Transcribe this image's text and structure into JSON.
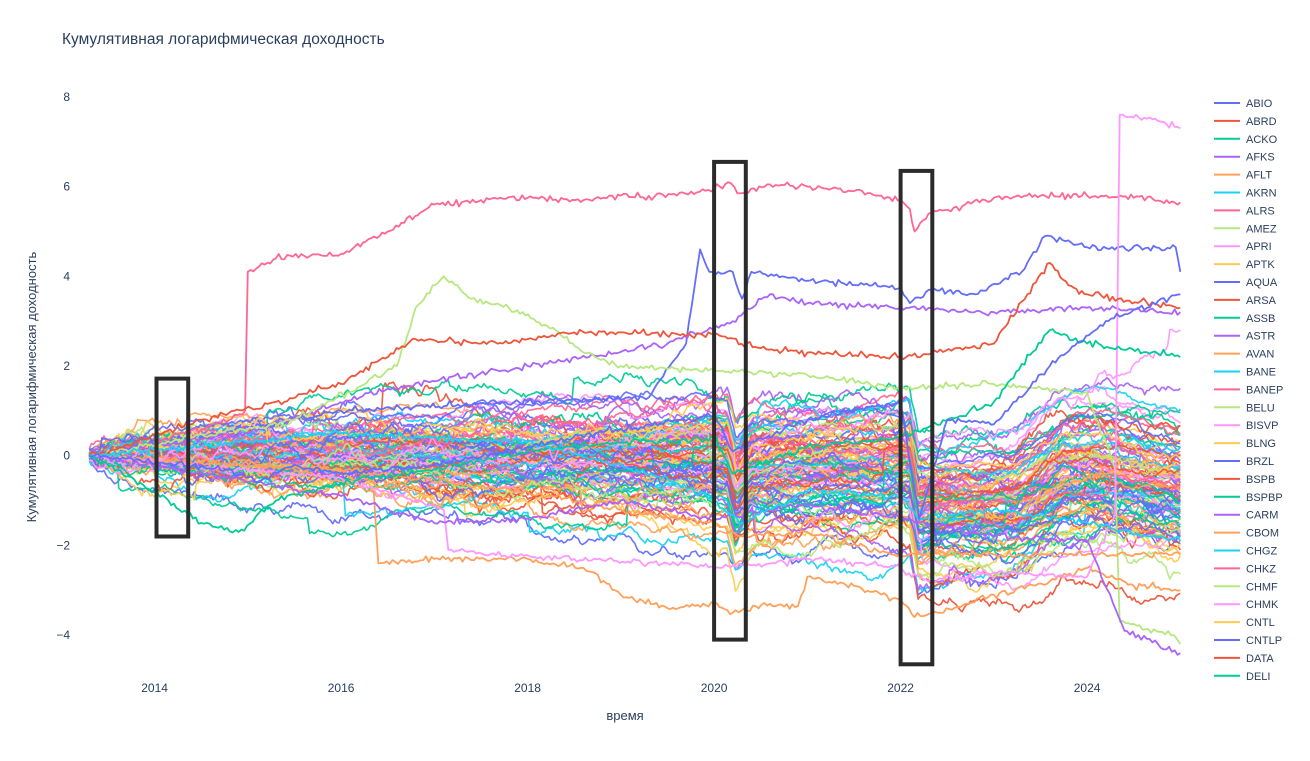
{
  "chart_data": {
    "type": "line",
    "title": "Кумулятивная логарифмическая доходность",
    "xlabel": "время",
    "ylabel": "Кумулятивная логарифмическая доходность",
    "xlim": [
      2013.2,
      2025.05
    ],
    "ylim": [
      -5.0,
      8.6
    ],
    "x_ticks": [
      2014,
      2016,
      2018,
      2020,
      2022,
      2024
    ],
    "x_tick_labels": [
      "2014",
      "2016",
      "2018",
      "2020",
      "2022",
      "2024"
    ],
    "y_ticks": [
      -4,
      -2,
      0,
      2,
      4,
      6,
      8
    ],
    "y_tick_labels": [
      "−4",
      "−2",
      "0",
      "2",
      "4",
      "6",
      "8"
    ],
    "grid": false,
    "legend_position": "right",
    "legend": [
      {
        "name": "ABIO",
        "color": "#636efa"
      },
      {
        "name": "ABRD",
        "color": "#ef553b"
      },
      {
        "name": "ACKO",
        "color": "#00cc96"
      },
      {
        "name": "AFKS",
        "color": "#ab63fa"
      },
      {
        "name": "AFLT",
        "color": "#ffa15a"
      },
      {
        "name": "AKRN",
        "color": "#19d3f3"
      },
      {
        "name": "ALRS",
        "color": "#ff6692"
      },
      {
        "name": "AMEZ",
        "color": "#b6e880"
      },
      {
        "name": "APRI",
        "color": "#ff97ff"
      },
      {
        "name": "APTK",
        "color": "#fecb52"
      },
      {
        "name": "AQUA",
        "color": "#636efa"
      },
      {
        "name": "ARSA",
        "color": "#ef553b"
      },
      {
        "name": "ASSB",
        "color": "#00cc96"
      },
      {
        "name": "ASTR",
        "color": "#ab63fa"
      },
      {
        "name": "AVAN",
        "color": "#ffa15a"
      },
      {
        "name": "BANE",
        "color": "#19d3f3"
      },
      {
        "name": "BANEP",
        "color": "#ff6692"
      },
      {
        "name": "BELU",
        "color": "#b6e880"
      },
      {
        "name": "BISVP",
        "color": "#ff97ff"
      },
      {
        "name": "BLNG",
        "color": "#fecb52"
      },
      {
        "name": "BRZL",
        "color": "#636efa"
      },
      {
        "name": "BSPB",
        "color": "#ef553b"
      },
      {
        "name": "BSPBP",
        "color": "#00cc96"
      },
      {
        "name": "CARM",
        "color": "#ab63fa"
      },
      {
        "name": "CBOM",
        "color": "#ffa15a"
      },
      {
        "name": "CHGZ",
        "color": "#19d3f3"
      },
      {
        "name": "CHKZ",
        "color": "#ff6692"
      },
      {
        "name": "CHMF",
        "color": "#b6e880"
      },
      {
        "name": "CHMK",
        "color": "#ff97ff"
      },
      {
        "name": "CNTL",
        "color": "#fecb52"
      },
      {
        "name": "CNTLP",
        "color": "#636efa"
      },
      {
        "name": "DATA",
        "color": "#ef553b"
      },
      {
        "name": "DELI",
        "color": "#00cc96"
      }
    ],
    "highlighted_series": [
      {
        "color": "#ff6692",
        "points": [
          [
            2013.3,
            0
          ],
          [
            2014.0,
            0.3
          ],
          [
            2014.8,
            0.8
          ],
          [
            2014.97,
            1.0
          ],
          [
            2015.0,
            4.1
          ],
          [
            2015.3,
            4.4
          ],
          [
            2016.0,
            4.5
          ],
          [
            2016.5,
            5.0
          ],
          [
            2017.0,
            5.6
          ],
          [
            2017.5,
            5.7
          ],
          [
            2018.0,
            5.75
          ],
          [
            2018.6,
            5.7
          ],
          [
            2019.0,
            5.8
          ],
          [
            2019.6,
            5.8
          ],
          [
            2020.0,
            5.95
          ],
          [
            2020.15,
            6.1
          ],
          [
            2020.25,
            5.85
          ],
          [
            2020.6,
            6.05
          ],
          [
            2021.0,
            6.0
          ],
          [
            2021.5,
            5.9
          ],
          [
            2022.0,
            5.7
          ],
          [
            2022.1,
            5.5
          ],
          [
            2022.15,
            5.0
          ],
          [
            2022.3,
            5.4
          ],
          [
            2022.6,
            5.55
          ],
          [
            2023.0,
            5.75
          ],
          [
            2023.5,
            5.8
          ],
          [
            2024.0,
            5.8
          ],
          [
            2024.5,
            5.75
          ],
          [
            2025.0,
            5.65
          ]
        ]
      },
      {
        "color": "#636efa",
        "points": [
          [
            2013.3,
            0
          ],
          [
            2016.0,
            1.0
          ],
          [
            2018.0,
            1.2
          ],
          [
            2019.3,
            1.3
          ],
          [
            2019.7,
            2.5
          ],
          [
            2019.85,
            4.6
          ],
          [
            2019.95,
            4.1
          ],
          [
            2020.2,
            4.1
          ],
          [
            2020.3,
            3.5
          ],
          [
            2020.4,
            4.1
          ],
          [
            2021.0,
            3.9
          ],
          [
            2022.0,
            3.75
          ],
          [
            2022.1,
            3.4
          ],
          [
            2022.3,
            3.7
          ],
          [
            2022.8,
            3.6
          ],
          [
            2023.3,
            4.1
          ],
          [
            2023.55,
            4.9
          ],
          [
            2023.8,
            4.8
          ],
          [
            2024.0,
            4.65
          ],
          [
            2024.95,
            4.65
          ],
          [
            2025.0,
            4.1
          ]
        ]
      },
      {
        "color": "#ab63fa",
        "points": [
          [
            2013.3,
            0
          ],
          [
            2015.0,
            0.5
          ],
          [
            2016.5,
            1.5
          ],
          [
            2018.0,
            2.0
          ],
          [
            2019.5,
            2.5
          ],
          [
            2020.2,
            3.0
          ],
          [
            2020.6,
            3.6
          ],
          [
            2021.0,
            3.4
          ],
          [
            2022.0,
            3.3
          ],
          [
            2023.0,
            3.2
          ],
          [
            2024.0,
            3.3
          ],
          [
            2025.0,
            3.2
          ]
        ]
      },
      {
        "color": "#b6e880",
        "points": [
          [
            2013.3,
            0
          ],
          [
            2015.5,
            0.8
          ],
          [
            2016.6,
            2.0
          ],
          [
            2016.8,
            3.3
          ],
          [
            2017.1,
            4.0
          ],
          [
            2017.4,
            3.5
          ],
          [
            2017.8,
            3.3
          ],
          [
            2018.3,
            2.8
          ],
          [
            2018.6,
            2.3
          ],
          [
            2019.0,
            2.0
          ],
          [
            2020.0,
            1.9
          ],
          [
            2021.0,
            1.8
          ],
          [
            2022.0,
            1.5
          ],
          [
            2023.0,
            1.6
          ],
          [
            2024.0,
            1.4
          ],
          [
            2024.3,
            -0.3
          ],
          [
            2024.35,
            -3.7
          ],
          [
            2024.9,
            -4.0
          ],
          [
            2025.0,
            -4.2
          ]
        ]
      },
      {
        "color": "#ffa15a",
        "points": [
          [
            2013.3,
            0
          ],
          [
            2015.5,
            -0.3
          ],
          [
            2016.35,
            -0.8
          ],
          [
            2016.4,
            -2.4
          ],
          [
            2017.0,
            -2.3
          ],
          [
            2018.0,
            -2.3
          ],
          [
            2018.6,
            -2.5
          ],
          [
            2019.0,
            -3.1
          ],
          [
            2019.5,
            -3.4
          ],
          [
            2020.0,
            -3.3
          ],
          [
            2020.2,
            -3.5
          ],
          [
            2020.6,
            -3.3
          ],
          [
            2020.9,
            -3.35
          ],
          [
            2021.0,
            -2.7
          ],
          [
            2021.5,
            -2.9
          ],
          [
            2022.0,
            -3.2
          ],
          [
            2022.15,
            -3.6
          ],
          [
            2022.4,
            -3.5
          ],
          [
            2022.7,
            -3.3
          ],
          [
            2023.0,
            -3.1
          ],
          [
            2023.6,
            -2.8
          ],
          [
            2024.0,
            -2.5
          ],
          [
            2024.5,
            -2.9
          ],
          [
            2025.0,
            -3.0
          ]
        ]
      },
      {
        "color": "#ffa15a",
        "points": [
          [
            2013.3,
            0
          ],
          [
            2016.0,
            -0.3
          ],
          [
            2018.0,
            -0.8
          ],
          [
            2019.0,
            -1.2
          ],
          [
            2020.0,
            -1.5
          ],
          [
            2020.3,
            -1.8
          ],
          [
            2021.0,
            -1.7
          ],
          [
            2021.9,
            -2.2
          ],
          [
            2025.0,
            -2.2
          ]
        ]
      },
      {
        "color": "#ff97ff",
        "points": [
          [
            2013.3,
            0
          ],
          [
            2016.0,
            -0.5
          ],
          [
            2017.1,
            -1.2
          ],
          [
            2017.15,
            -2.1
          ],
          [
            2017.6,
            -2.2
          ],
          [
            2018.5,
            -2.3
          ],
          [
            2019.5,
            -2.4
          ],
          [
            2020.0,
            -2.5
          ],
          [
            2020.6,
            -2.4
          ],
          [
            2021.0,
            -2.3
          ],
          [
            2022.0,
            -2.5
          ],
          [
            2022.3,
            -2.8
          ],
          [
            2023.0,
            -2.6
          ],
          [
            2024.0,
            -2.7
          ],
          [
            2024.3,
            -1.3
          ],
          [
            2024.35,
            7.6
          ],
          [
            2024.7,
            7.5
          ],
          [
            2025.0,
            7.3
          ]
        ]
      },
      {
        "color": "#ab63fa",
        "points": [
          [
            2013.3,
            0
          ],
          [
            2016.0,
            -0.9
          ],
          [
            2017.0,
            -1.5
          ],
          [
            2018.0,
            -1.4
          ],
          [
            2019.0,
            -1.0
          ],
          [
            2020.0,
            -1.4
          ],
          [
            2021.0,
            -1.1
          ],
          [
            2022.0,
            -1.4
          ],
          [
            2023.0,
            -1.8
          ],
          [
            2024.0,
            -1.9
          ],
          [
            2024.4,
            -3.9
          ],
          [
            2025.0,
            -4.4
          ]
        ]
      },
      {
        "color": "#ef553b",
        "points": [
          [
            2013.3,
            0
          ],
          [
            2013.8,
            0.3
          ],
          [
            2014.5,
            0.8
          ],
          [
            2015.3,
            1.2
          ],
          [
            2016.0,
            1.6
          ],
          [
            2016.8,
            2.6
          ],
          [
            2017.5,
            2.5
          ],
          [
            2018.0,
            2.6
          ],
          [
            2018.5,
            2.75
          ],
          [
            2019.0,
            2.75
          ],
          [
            2020.0,
            2.7
          ],
          [
            2020.5,
            2.4
          ],
          [
            2021.0,
            2.3
          ],
          [
            2022.0,
            2.2
          ],
          [
            2023.0,
            2.5
          ],
          [
            2023.6,
            4.3
          ],
          [
            2023.8,
            3.8
          ],
          [
            2024.0,
            3.6
          ],
          [
            2025.0,
            3.3
          ]
        ]
      },
      {
        "color": "#00cc96",
        "points": [
          [
            2013.3,
            0
          ],
          [
            2014.0,
            -0.8
          ],
          [
            2014.5,
            -1.5
          ],
          [
            2014.9,
            -1.7
          ],
          [
            2015.3,
            -1.0
          ],
          [
            2016.0,
            -0.6
          ],
          [
            2017.0,
            -0.3
          ],
          [
            2018.0,
            0.1
          ],
          [
            2019.0,
            0.3
          ],
          [
            2020.0,
            0.4
          ],
          [
            2020.2,
            -0.4
          ],
          [
            2021.0,
            0.2
          ],
          [
            2022.0,
            0.4
          ],
          [
            2023.0,
            1.2
          ],
          [
            2023.6,
            2.8
          ],
          [
            2024.0,
            2.5
          ],
          [
            2025.0,
            2.2
          ]
        ]
      },
      {
        "color": "#19d3f3",
        "points": [
          [
            2013.3,
            0
          ],
          [
            2015.0,
            0.3
          ],
          [
            2016.0,
            0.5
          ],
          [
            2018.0,
            0.3
          ],
          [
            2019.5,
            -0.5
          ],
          [
            2020.0,
            -1.0
          ],
          [
            2020.3,
            -1.5
          ],
          [
            2021.0,
            -0.8
          ],
          [
            2022.0,
            -0.9
          ],
          [
            2022.2,
            -1.4
          ],
          [
            2023.0,
            -1.2
          ],
          [
            2024.0,
            -1.5
          ],
          [
            2025.0,
            -1.9
          ]
        ]
      },
      {
        "color": "#636efa",
        "points": [
          [
            2013.3,
            0
          ],
          [
            2014.8,
            -0.3
          ],
          [
            2015.1,
            -0.6
          ],
          [
            2015.5,
            -0.2
          ],
          [
            2016.0,
            -0.4
          ],
          [
            2017.0,
            -0.2
          ],
          [
            2018.0,
            0.2
          ],
          [
            2019.0,
            0.6
          ],
          [
            2020.0,
            0.9
          ],
          [
            2020.2,
            0.1
          ],
          [
            2021.0,
            0.8
          ],
          [
            2022.0,
            1.2
          ],
          [
            2022.2,
            -1.4
          ],
          [
            2022.5,
            0.8
          ],
          [
            2023.0,
            0.7
          ],
          [
            2023.6,
            2.0
          ],
          [
            2024.2,
            3.0
          ],
          [
            2025.0,
            3.6
          ]
        ]
      }
    ],
    "annotations": [
      {
        "shape": "rectangle",
        "x0": 2014.02,
        "x1": 2014.36,
        "y0": -1.8,
        "y1": 1.72
      },
      {
        "shape": "rectangle",
        "x0": 2020.0,
        "x1": 2020.34,
        "y0": -4.1,
        "y1": 6.55
      },
      {
        "shape": "rectangle",
        "x0": 2022.0,
        "x1": 2022.34,
        "y0": -4.65,
        "y1": 6.35
      }
    ]
  },
  "colors": {
    "axis_text": "#2a3f5f",
    "annotation_box": "#2b2b2b",
    "background": "#ffffff"
  }
}
